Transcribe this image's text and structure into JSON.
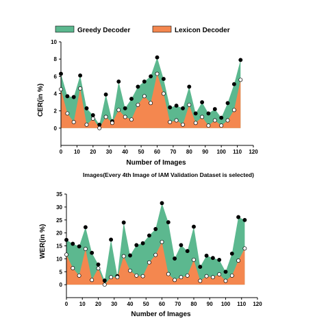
{
  "legend": {
    "greedy_label": "Greedy Decoder",
    "lexicon_label": "Lexicon Decoder",
    "greedy_color": "#5cb88f",
    "lexicon_color": "#f4874f"
  },
  "caption": "Images(Every 4th Image of IAM Validation Dataset is selected)",
  "chart_data": [
    {
      "type": "area",
      "xlabel": "Number of Images",
      "ylabel": "CER(in %)",
      "xlim": [
        0,
        120
      ],
      "ylim": [
        -2,
        10
      ],
      "xticks": [
        0,
        10,
        20,
        30,
        40,
        50,
        60,
        70,
        80,
        90,
        100,
        110,
        120
      ],
      "yticks": [
        0,
        2,
        4,
        6,
        8,
        10
      ],
      "grid": false,
      "legend_position": "top",
      "x": [
        0,
        4,
        8,
        12,
        16,
        20,
        24,
        28,
        32,
        36,
        40,
        44,
        48,
        52,
        56,
        60,
        64,
        68,
        72,
        76,
        80,
        84,
        88,
        92,
        96,
        100,
        104,
        108,
        112
      ],
      "series": [
        {
          "name": "Greedy Decoder",
          "values": [
            6.3,
            3.7,
            3.6,
            6.1,
            2.3,
            1.5,
            0.4,
            3.9,
            0.8,
            5.4,
            2.3,
            3.4,
            4.8,
            5.4,
            6.0,
            8.2,
            5.7,
            2.4,
            2.6,
            2.3,
            4.8,
            1.7,
            3.0,
            1.7,
            2.2,
            1.2,
            2.9,
            5.1,
            7.9
          ]
        },
        {
          "name": "Lexicon Decoder",
          "values": [
            4.5,
            1.7,
            0.7,
            4.6,
            0.4,
            1.1,
            0.0,
            1.3,
            0.6,
            2.1,
            1.3,
            1.0,
            2.7,
            3.7,
            2.9,
            6.3,
            4.0,
            0.7,
            0.9,
            0.4,
            2.7,
            0.6,
            1.3,
            0.3,
            0.9,
            0.3,
            0.9,
            2.1,
            5.6
          ]
        }
      ]
    },
    {
      "type": "area",
      "xlabel": "Number of Images",
      "ylabel": "WER(in %)",
      "xlim": [
        0,
        120
      ],
      "ylim": [
        -5,
        35
      ],
      "xticks": [
        0,
        10,
        20,
        30,
        40,
        50,
        60,
        70,
        80,
        90,
        100,
        110,
        120
      ],
      "yticks": [
        0,
        5,
        10,
        15,
        20,
        25,
        30,
        35
      ],
      "grid": false,
      "legend_position": "top",
      "x": [
        0,
        4,
        8,
        12,
        16,
        20,
        24,
        28,
        32,
        36,
        40,
        44,
        48,
        52,
        56,
        60,
        64,
        68,
        72,
        76,
        80,
        84,
        88,
        92,
        96,
        100,
        104,
        108,
        112
      ],
      "series": [
        {
          "name": "Greedy Decoder",
          "values": [
            17.3,
            15.8,
            14.8,
            22.2,
            12.3,
            7.8,
            1.6,
            17.4,
            3.3,
            24.0,
            11.3,
            15.3,
            16.0,
            19.0,
            21.5,
            31.5,
            24.1,
            10.1,
            15.3,
            13.0,
            22.4,
            6.9,
            11.2,
            10.3,
            9.6,
            5.0,
            12.0,
            26.1,
            25.0
          ]
        },
        {
          "name": "Lexicon Decoder",
          "values": [
            11.6,
            6.4,
            3.5,
            13.8,
            1.8,
            6.3,
            0.0,
            2.9,
            2.9,
            11.0,
            5.4,
            3.5,
            3.3,
            8.6,
            11.5,
            16.5,
            4.1,
            1.8,
            2.9,
            3.5,
            9.6,
            1.5,
            3.3,
            2.9,
            4.0,
            1.5,
            3.5,
            9.3,
            14.0
          ]
        }
      ]
    }
  ]
}
